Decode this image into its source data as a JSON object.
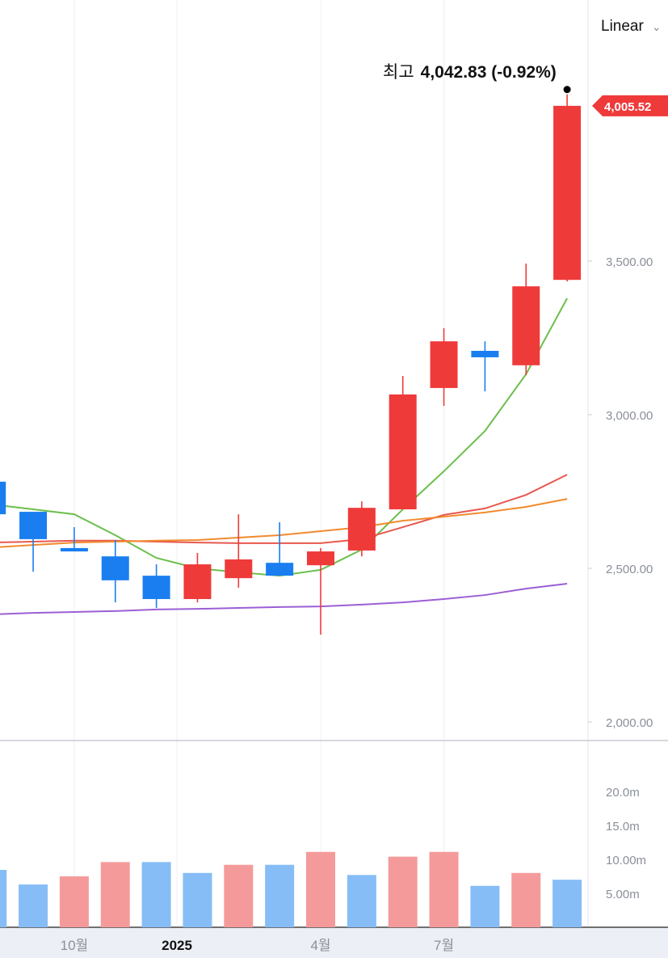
{
  "scale_selector": {
    "label": "Linear",
    "icon": "chevron-down-icon"
  },
  "high_annotation": {
    "label": "최고",
    "value": "4,042.83 (-0.92%)"
  },
  "last_price_label": "4,005.52",
  "colors": {
    "up": "#ef3a3a",
    "down": "#1a7ef0",
    "vol_up": "#f59a9a",
    "vol_down": "#86bdf6",
    "ma5": "#6abf4b",
    "ma10": "#e8584f",
    "ma20": "#f28a2e",
    "ma60": "#9b5fd6",
    "last_price": "#ef3a3a"
  },
  "chart_data": {
    "type": "candlestick",
    "price_axis": {
      "ticks": [
        "2,000.00",
        "2,500.00",
        "3,000.00",
        "3,500.00"
      ],
      "tick_values": [
        2000,
        2500,
        3000,
        3500
      ],
      "ylim": [
        2000,
        4060
      ]
    },
    "volume_axis": {
      "ticks": [
        "5.00m",
        "10.00m",
        "15.0m",
        "20.0m"
      ],
      "tick_values": [
        5,
        10,
        15,
        20
      ],
      "unit": "millions"
    },
    "x_labels": [
      {
        "text": "10월",
        "index": 2,
        "bold": false
      },
      {
        "text": "2025",
        "index": 4.5,
        "bold": true
      },
      {
        "text": "4월",
        "index": 8,
        "bold": false
      },
      {
        "text": "7월",
        "index": 11,
        "bold": false
      }
    ],
    "candles": [
      {
        "o": 2782,
        "h": 2790,
        "l": 2676,
        "c": 2676
      },
      {
        "o": 2684,
        "h": 2684,
        "l": 2489,
        "c": 2595
      },
      {
        "o": 2566,
        "h": 2634,
        "l": 2555,
        "c": 2555
      },
      {
        "o": 2539,
        "h": 2592,
        "l": 2389,
        "c": 2461
      },
      {
        "o": 2476,
        "h": 2513,
        "l": 2371,
        "c": 2400
      },
      {
        "o": 2400,
        "h": 2550,
        "l": 2389,
        "c": 2513
      },
      {
        "o": 2468,
        "h": 2676,
        "l": 2437,
        "c": 2529
      },
      {
        "o": 2518,
        "h": 2650,
        "l": 2476,
        "c": 2476
      },
      {
        "o": 2510,
        "h": 2566,
        "l": 2284,
        "c": 2555
      },
      {
        "o": 2558,
        "h": 2718,
        "l": 2539,
        "c": 2697
      },
      {
        "o": 2692,
        "h": 3126,
        "l": 2692,
        "c": 3066
      },
      {
        "o": 3087,
        "h": 3282,
        "l": 3029,
        "c": 3239
      },
      {
        "o": 3208,
        "h": 3239,
        "l": 3076,
        "c": 3187
      },
      {
        "o": 3161,
        "h": 3492,
        "l": 3129,
        "c": 3418
      },
      {
        "o": 3439,
        "h": 4042.83,
        "l": 3434,
        "c": 4005.52
      }
    ],
    "volume": [
      8.45,
      6.3,
      7.5,
      9.6,
      9.6,
      8.0,
      9.2,
      9.2,
      11.1,
      7.7,
      10.4,
      11.1,
      6.1,
      8.0,
      7.0
    ],
    "volume_dir": [
      "down",
      "down",
      "up",
      "up",
      "down",
      "down",
      "up",
      "down",
      "up",
      "down",
      "up",
      "up",
      "down",
      "up",
      "down"
    ],
    "moving_averages": [
      {
        "name": "ma5",
        "values": [
          2708,
          2692,
          2676,
          2608,
          2534,
          2500,
          2487,
          2476,
          2495,
          2561,
          2692,
          2816,
          2947,
          3132,
          3379
        ]
      },
      {
        "name": "ma10",
        "values": [
          2584,
          2587,
          2590,
          2590,
          2587,
          2584,
          2582,
          2582,
          2582,
          2595,
          2634,
          2674,
          2695,
          2739,
          2805
        ]
      },
      {
        "name": "ma20",
        "values": [
          2568,
          2576,
          2584,
          2587,
          2590,
          2592,
          2600,
          2608,
          2621,
          2634,
          2655,
          2668,
          2682,
          2700,
          2726
        ]
      },
      {
        "name": "ma60",
        "values": [
          2350,
          2355,
          2358,
          2361,
          2366,
          2368,
          2371,
          2374,
          2376,
          2382,
          2389,
          2400,
          2413,
          2434,
          2450
        ]
      }
    ]
  }
}
